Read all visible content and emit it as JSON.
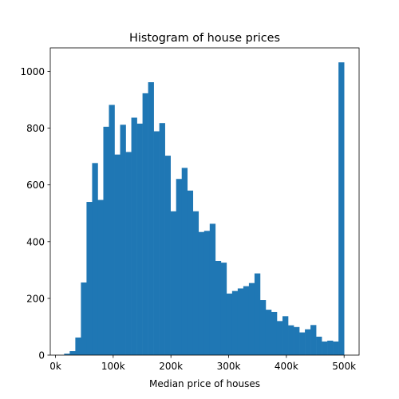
{
  "chart_data": {
    "type": "histogram",
    "title": "Histogram of house prices",
    "xlabel": "Median price of houses",
    "ylabel": "",
    "xlim": [
      -9000,
      526000
    ],
    "ylim": [
      0,
      1083
    ],
    "bin_start": 14999,
    "bin_width": 9700,
    "counts": [
      5,
      14,
      62,
      256,
      540,
      677,
      547,
      805,
      882,
      707,
      812,
      716,
      837,
      816,
      923,
      962,
      789,
      818,
      703,
      507,
      621,
      660,
      580,
      507,
      434,
      438,
      463,
      332,
      326,
      217,
      226,
      235,
      243,
      254,
      288,
      194,
      160,
      152,
      120,
      137,
      105,
      99,
      80,
      91,
      106,
      65,
      48,
      51,
      48,
      1032
    ],
    "x_ticks": [
      0,
      100000,
      200000,
      300000,
      400000,
      500000
    ],
    "x_tick_labels": [
      "0k",
      "100k",
      "200k",
      "300k",
      "400k",
      "500k"
    ],
    "y_ticks": [
      0,
      200,
      400,
      600,
      800,
      1000
    ],
    "y_tick_labels": [
      "0",
      "200",
      "400",
      "600",
      "800",
      "1000"
    ],
    "bar_color": "#1f77b4",
    "grid": false,
    "legend": false
  }
}
